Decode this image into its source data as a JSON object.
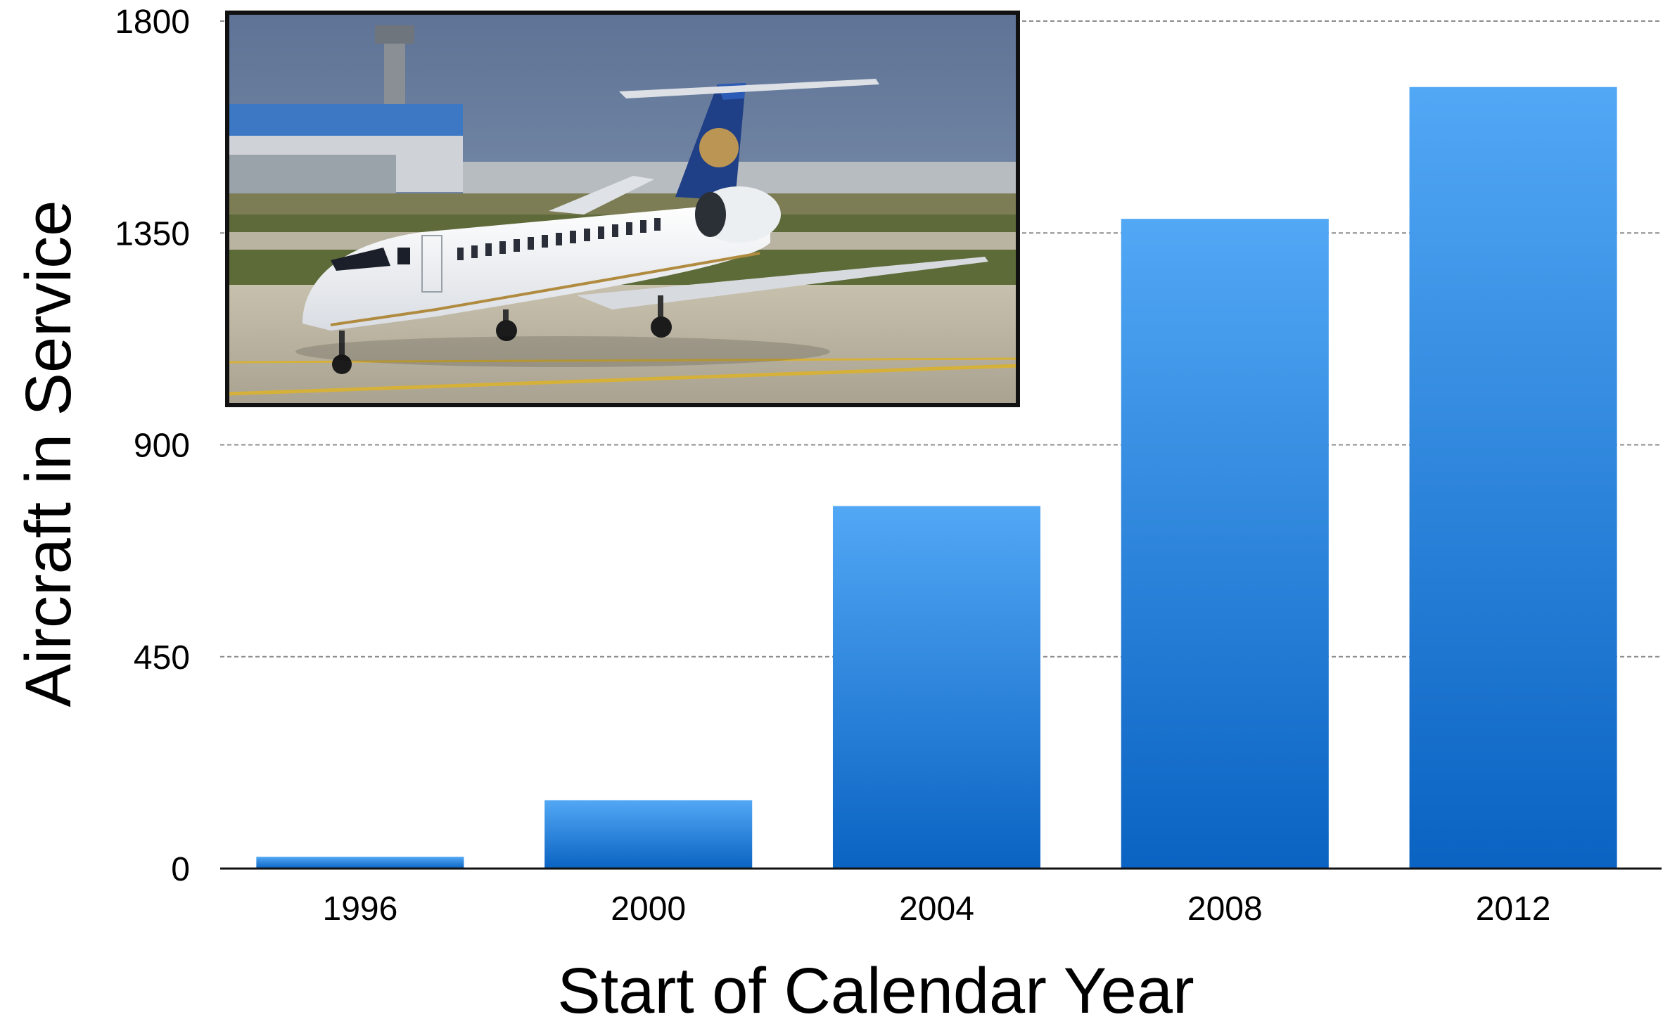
{
  "chart_data": {
    "type": "bar",
    "categories": [
      "1996",
      "2000",
      "2004",
      "2008",
      "2012"
    ],
    "values": [
      25,
      145,
      770,
      1380,
      1660
    ],
    "xlabel": "Start of Calendar Year",
    "ylabel": "Aircraft in Service",
    "yticks": [
      "0",
      "450",
      "900",
      "1350",
      "1800"
    ],
    "ylim": [
      0,
      1800
    ],
    "grid": true,
    "bar_color_top": "#52a8f5",
    "bar_color_bottom": "#0a63c2",
    "inset_image": "photo-of-united-express-regional-jet-on-airport-taxiway"
  }
}
